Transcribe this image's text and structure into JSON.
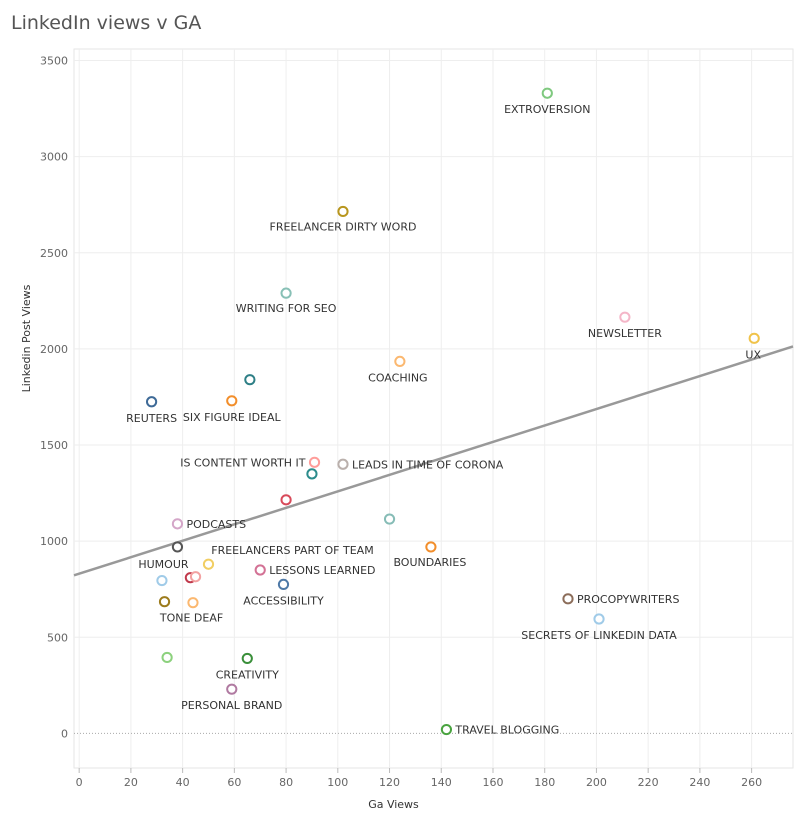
{
  "title": "LinkedIn views v GA",
  "chart_data": {
    "type": "scatter",
    "title": "LinkedIn views v GA",
    "xlabel": "Ga Views",
    "ylabel": "Linkedin Post Views",
    "xlim": [
      -2,
      276
    ],
    "ylim": [
      -180,
      3560
    ],
    "xticks": [
      0,
      20,
      40,
      60,
      80,
      100,
      120,
      140,
      160,
      180,
      200,
      220,
      240,
      260
    ],
    "yticks": [
      0,
      500,
      1000,
      1500,
      2000,
      2500,
      3000,
      3500
    ],
    "grid": true,
    "trendline": {
      "x": [
        -2,
        276
      ],
      "y": [
        822,
        2013
      ],
      "color": "#999999"
    },
    "points": [
      {
        "x": 181,
        "y": 3330,
        "label": "EXTROVERSION",
        "color": "#7fc97f"
      },
      {
        "x": 102,
        "y": 2715,
        "label": "FREELANCER DIRTY WORD",
        "color": "#b8961e"
      },
      {
        "x": 80,
        "y": 2290,
        "label": "WRITING FOR SEO",
        "color": "#88c0b6"
      },
      {
        "x": 211,
        "y": 2165,
        "label": "NEWSLETTER",
        "color": "#f4b6c8"
      },
      {
        "x": 261,
        "y": 2055,
        "label": "UX",
        "color": "#f0c34a"
      },
      {
        "x": 124,
        "y": 1935,
        "label": "COACHING",
        "color": "#fbb870"
      },
      {
        "x": 66,
        "y": 1840,
        "label": "",
        "color": "#2e7f86"
      },
      {
        "x": 28,
        "y": 1725,
        "label": "REUTERS",
        "color": "#3e6a97"
      },
      {
        "x": 59,
        "y": 1730,
        "label": "SIX FIGURE IDEAL",
        "color": "#f28e2b"
      },
      {
        "x": 91,
        "y": 1410,
        "label": "IS CONTENT WORTH IT",
        "color": "#ff9d9a"
      },
      {
        "x": 102,
        "y": 1400,
        "label": "LEADS IN TIME OF CORONA",
        "color": "#bab0ac"
      },
      {
        "x": 90,
        "y": 1350,
        "label": "",
        "color": "#2c8c8c"
      },
      {
        "x": 80,
        "y": 1215,
        "label": "",
        "color": "#d84a5a"
      },
      {
        "x": 120,
        "y": 1115,
        "label": "",
        "color": "#86bcb6"
      },
      {
        "x": 38,
        "y": 1090,
        "label": "PODCASTS",
        "color": "#d4a6c8"
      },
      {
        "x": 38,
        "y": 970,
        "label": "HUMOUR",
        "color": "#555555"
      },
      {
        "x": 136,
        "y": 970,
        "label": "BOUNDARIES",
        "color": "#f28e2b"
      },
      {
        "x": 50,
        "y": 880,
        "label": "FREELANCERS PART OF TEAM",
        "color": "#f1ce63"
      },
      {
        "x": 70,
        "y": 850,
        "label": "LESSONS LEARNED",
        "color": "#d37295"
      },
      {
        "x": 43,
        "y": 810,
        "label": "",
        "color": "#c0394b"
      },
      {
        "x": 45,
        "y": 815,
        "label": "",
        "color": "#f3a2a2"
      },
      {
        "x": 32,
        "y": 795,
        "label": "",
        "color": "#a0cbe8"
      },
      {
        "x": 79,
        "y": 775,
        "label": "ACCESSIBILITY",
        "color": "#4e79a7"
      },
      {
        "x": 189,
        "y": 700,
        "label": "PROCOPYWRITERS",
        "color": "#8c6d5a"
      },
      {
        "x": 33,
        "y": 685,
        "label": "TONE DEAF",
        "color": "#9c7b1c"
      },
      {
        "x": 44,
        "y": 680,
        "label": "",
        "color": "#fbb870"
      },
      {
        "x": 201,
        "y": 595,
        "label": "SECRETS OF LINKEDIN DATA",
        "color": "#a0cbe8"
      },
      {
        "x": 34,
        "y": 395,
        "label": "",
        "color": "#8cd17d"
      },
      {
        "x": 65,
        "y": 390,
        "label": "CREATIVITY",
        "color": "#3a8f3a"
      },
      {
        "x": 59,
        "y": 230,
        "label": "PERSONAL BRAND",
        "color": "#b07aa1"
      },
      {
        "x": 142,
        "y": 20,
        "label": "TRAVEL BLOGGING",
        "color": "#4aa340"
      }
    ]
  }
}
